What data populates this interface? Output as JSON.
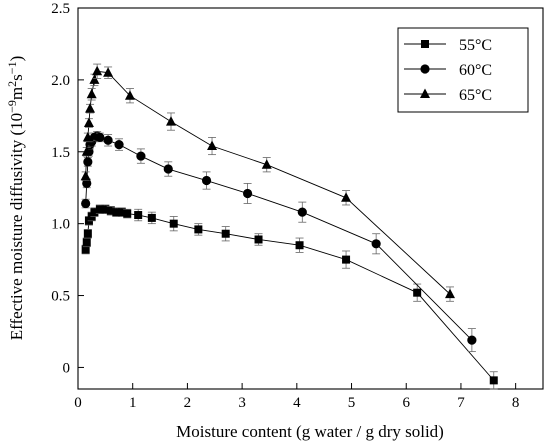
{
  "chart_data": {
    "type": "line",
    "xlabel": "Moisture content (g water / g dry solid)",
    "ylabel_parts": [
      "Effective moisture diffusivity (10",
      "−9",
      "m",
      "2",
      "s",
      "−1",
      ")"
    ],
    "xlim": [
      0,
      8.5
    ],
    "ylim": [
      -0.15,
      2.5
    ],
    "x_ticks": [
      "0",
      "1",
      "2",
      "3",
      "4",
      "5",
      "6",
      "7",
      "8"
    ],
    "y_ticks": [
      "0",
      "0.5",
      "1.0",
      "1.5",
      "2.0",
      "2.5"
    ],
    "legend_position": "top-right",
    "grid": false,
    "series": [
      {
        "name": "55°C",
        "marker": "square",
        "x": [
          0.14,
          0.16,
          0.18,
          0.2,
          0.25,
          0.3,
          0.4,
          0.5,
          0.6,
          0.7,
          0.8,
          0.9,
          1.1,
          1.35,
          1.75,
          2.2,
          2.7,
          3.3,
          4.05,
          4.9,
          6.2,
          7.6
        ],
        "y": [
          0.82,
          0.87,
          0.93,
          1.02,
          1.05,
          1.08,
          1.1,
          1.1,
          1.09,
          1.08,
          1.08,
          1.07,
          1.06,
          1.04,
          1.0,
          0.96,
          0.93,
          0.89,
          0.85,
          0.75,
          0.52,
          -0.09
        ],
        "err": [
          0.03,
          0.03,
          0.03,
          0.03,
          0.03,
          0.03,
          0.03,
          0.03,
          0.03,
          0.03,
          0.03,
          0.03,
          0.04,
          0.04,
          0.05,
          0.04,
          0.05,
          0.04,
          0.05,
          0.06,
          0.06,
          0.06
        ]
      },
      {
        "name": "60°C",
        "marker": "circle",
        "x": [
          0.14,
          0.16,
          0.18,
          0.2,
          0.22,
          0.25,
          0.3,
          0.35,
          0.4,
          0.55,
          0.75,
          1.15,
          1.65,
          2.35,
          3.1,
          4.1,
          5.45,
          7.2
        ],
        "y": [
          1.14,
          1.28,
          1.43,
          1.5,
          1.55,
          1.57,
          1.6,
          1.61,
          1.6,
          1.58,
          1.55,
          1.47,
          1.38,
          1.3,
          1.21,
          1.08,
          0.86,
          0.19
        ],
        "err": [
          0.03,
          0.03,
          0.03,
          0.03,
          0.03,
          0.03,
          0.03,
          0.03,
          0.03,
          0.04,
          0.04,
          0.05,
          0.05,
          0.06,
          0.07,
          0.07,
          0.07,
          0.08
        ]
      },
      {
        "name": "65°C",
        "marker": "triangle",
        "x": [
          0.14,
          0.16,
          0.18,
          0.2,
          0.22,
          0.25,
          0.3,
          0.35,
          0.55,
          0.95,
          1.7,
          2.45,
          3.45,
          4.9,
          6.8
        ],
        "y": [
          1.33,
          1.5,
          1.6,
          1.7,
          1.8,
          1.9,
          2.0,
          2.06,
          2.05,
          1.89,
          1.71,
          1.54,
          1.41,
          1.18,
          0.51
        ],
        "err": [
          0.03,
          0.03,
          0.03,
          0.03,
          0.03,
          0.04,
          0.04,
          0.05,
          0.04,
          0.05,
          0.06,
          0.06,
          0.05,
          0.05,
          0.05
        ]
      }
    ]
  }
}
